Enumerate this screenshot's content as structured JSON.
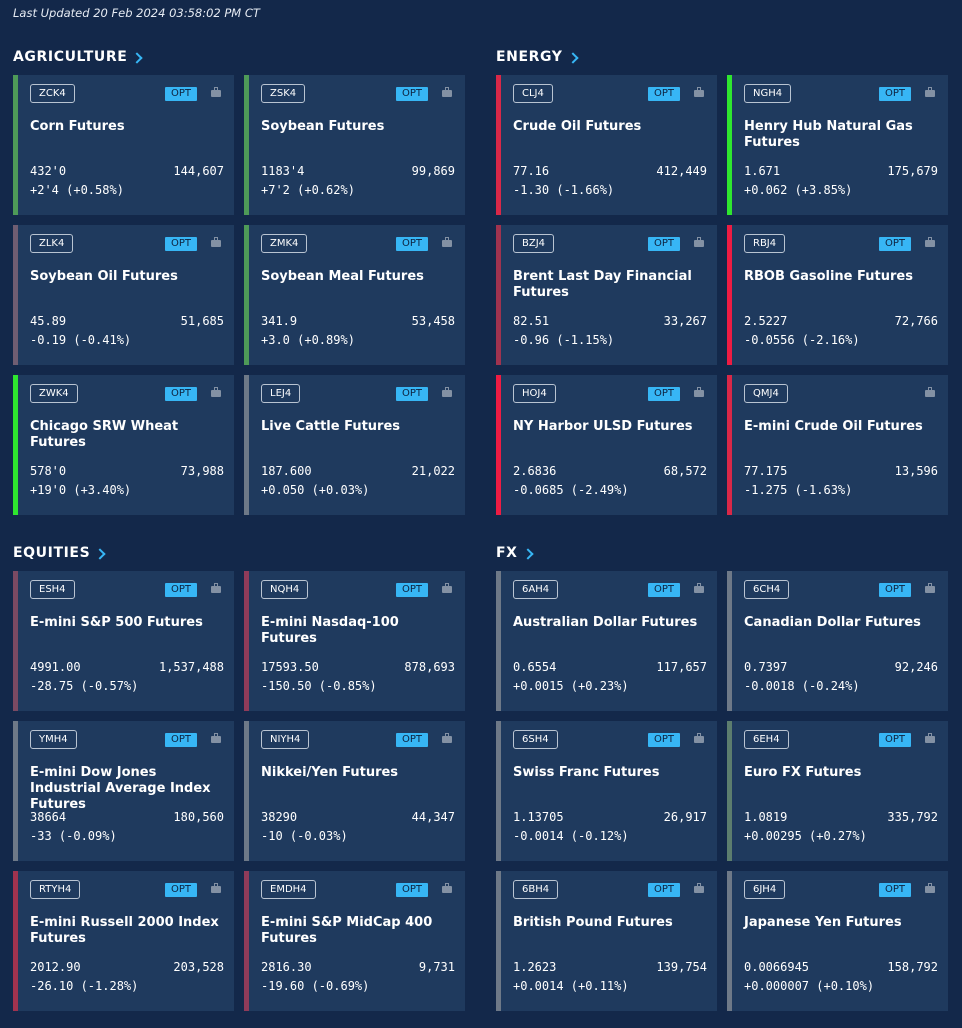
{
  "last_updated": "Last Updated 20 Feb 2024 03:58:02 PM CT",
  "opt_label": "OPT",
  "colors": {
    "background": "#13284a",
    "card": "#1f3a5e",
    "accent": "#37b6f5"
  },
  "sections": [
    {
      "title": "AGRICULTURE",
      "cards": [
        {
          "code": "ZCK4",
          "name": "Corn Futures",
          "price": "432'0",
          "volume": "144,607",
          "change": "+2'4 (+0.58%)",
          "bar": "#4e9a58",
          "opt": true
        },
        {
          "code": "ZSK4",
          "name": "Soybean Futures",
          "price": "1183'4",
          "volume": "99,869",
          "change": "+7'2 (+0.62%)",
          "bar": "#4e9a58",
          "opt": true
        },
        {
          "code": "ZLK4",
          "name": "Soybean Oil Futures",
          "price": "45.89",
          "volume": "51,685",
          "change": "-0.19 (-0.41%)",
          "bar": "#6f5d72",
          "opt": true
        },
        {
          "code": "ZMK4",
          "name": "Soybean Meal Futures",
          "price": "341.9",
          "volume": "53,458",
          "change": "+3.0 (+0.89%)",
          "bar": "#4e9a58",
          "opt": true
        },
        {
          "code": "ZWK4",
          "name": "Chicago SRW Wheat Futures",
          "price": "578'0",
          "volume": "73,988",
          "change": "+19'0 (+3.40%)",
          "bar": "#2fe62f",
          "opt": true
        },
        {
          "code": "LEJ4",
          "name": "Live Cattle Futures",
          "price": "187.600",
          "volume": "21,022",
          "change": "+0.050 (+0.03%)",
          "bar": "#6e7988",
          "opt": true
        }
      ]
    },
    {
      "title": "ENERGY",
      "cards": [
        {
          "code": "CLJ4",
          "name": "Crude Oil Futures",
          "price": "77.16",
          "volume": "412,449",
          "change": "-1.30 (-1.66%)",
          "bar": "#d92848",
          "opt": true
        },
        {
          "code": "NGH4",
          "name": "Henry Hub Natural Gas Futures",
          "price": "1.671",
          "volume": "175,679",
          "change": "+0.062 (+3.85%)",
          "bar": "#2fe62f",
          "opt": true
        },
        {
          "code": "BZJ4",
          "name": "Brent Last Day Financial Futures",
          "price": "82.51",
          "volume": "33,267",
          "change": "-0.96 (-1.15%)",
          "bar": "#a0334f",
          "opt": true
        },
        {
          "code": "RBJ4",
          "name": "RBOB Gasoline Futures",
          "price": "2.5227",
          "volume": "72,766",
          "change": "-0.0556 (-2.16%)",
          "bar": "#ee1c43",
          "opt": true
        },
        {
          "code": "HOJ4",
          "name": "NY Harbor ULSD Futures",
          "price": "2.6836",
          "volume": "68,572",
          "change": "-0.0685 (-2.49%)",
          "bar": "#ee1c43",
          "opt": true
        },
        {
          "code": "QMJ4",
          "name": "E-mini Crude Oil Futures",
          "price": "77.175",
          "volume": "13,596",
          "change": "-1.275 (-1.63%)",
          "bar": "#d92848",
          "opt": false
        }
      ]
    },
    {
      "title": "EQUITIES",
      "cards": [
        {
          "code": "ESH4",
          "name": "E-mini S&P 500 Futures",
          "price": "4991.00",
          "volume": "1,537,488",
          "change": "-28.75 (-0.57%)",
          "bar": "#7a4a63",
          "opt": true
        },
        {
          "code": "NQH4",
          "name": "E-mini Nasdaq-100 Futures",
          "price": "17593.50",
          "volume": "878,693",
          "change": "-150.50 (-0.85%)",
          "bar": "#8f3b5a",
          "opt": true
        },
        {
          "code": "YMH4",
          "name": "E-mini Dow Jones Industrial Average Index Futures",
          "price": "38664",
          "volume": "180,560",
          "change": "-33 (-0.09%)",
          "bar": "#6e7988",
          "opt": true
        },
        {
          "code": "NIYH4",
          "name": "Nikkei/Yen Futures",
          "price": "38290",
          "volume": "44,347",
          "change": "-10 (-0.03%)",
          "bar": "#6e7988",
          "opt": true
        },
        {
          "code": "RTYH4",
          "name": "E-mini  Russell 2000 Index Futures",
          "price": "2012.90",
          "volume": "203,528",
          "change": "-26.10 (-1.28%)",
          "bar": "#a0334f",
          "opt": true
        },
        {
          "code": "EMDH4",
          "name": "E-mini S&P MidCap 400 Futures",
          "price": "2816.30",
          "volume": "9,731",
          "change": "-19.60 (-0.69%)",
          "bar": "#8f3b5a",
          "opt": true
        }
      ]
    },
    {
      "title": "FX",
      "cards": [
        {
          "code": "6AH4",
          "name": "Australian Dollar Futures",
          "price": "0.6554",
          "volume": "117,657",
          "change": "+0.0015 (+0.23%)",
          "bar": "#6e7988",
          "opt": true
        },
        {
          "code": "6CH4",
          "name": "Canadian Dollar Futures",
          "price": "0.7397",
          "volume": "92,246",
          "change": "-0.0018 (-0.24%)",
          "bar": "#6e7988",
          "opt": true
        },
        {
          "code": "6SH4",
          "name": "Swiss Franc Futures",
          "price": "1.13705",
          "volume": "26,917",
          "change": "-0.0014 (-0.12%)",
          "bar": "#6e7988",
          "opt": true
        },
        {
          "code": "6EH4",
          "name": "Euro FX Futures",
          "price": "1.0819",
          "volume": "335,792",
          "change": "+0.00295 (+0.27%)",
          "bar": "#5c7d6e",
          "opt": true
        },
        {
          "code": "6BH4",
          "name": "British Pound Futures",
          "price": "1.2623",
          "volume": "139,754",
          "change": "+0.0014 (+0.11%)",
          "bar": "#6e7988",
          "opt": true
        },
        {
          "code": "6JH4",
          "name": "Japanese Yen Futures",
          "price": "0.0066945",
          "volume": "158,792",
          "change": "+0.000007 (+0.10%)",
          "bar": "#6e7988",
          "opt": true
        }
      ]
    }
  ]
}
